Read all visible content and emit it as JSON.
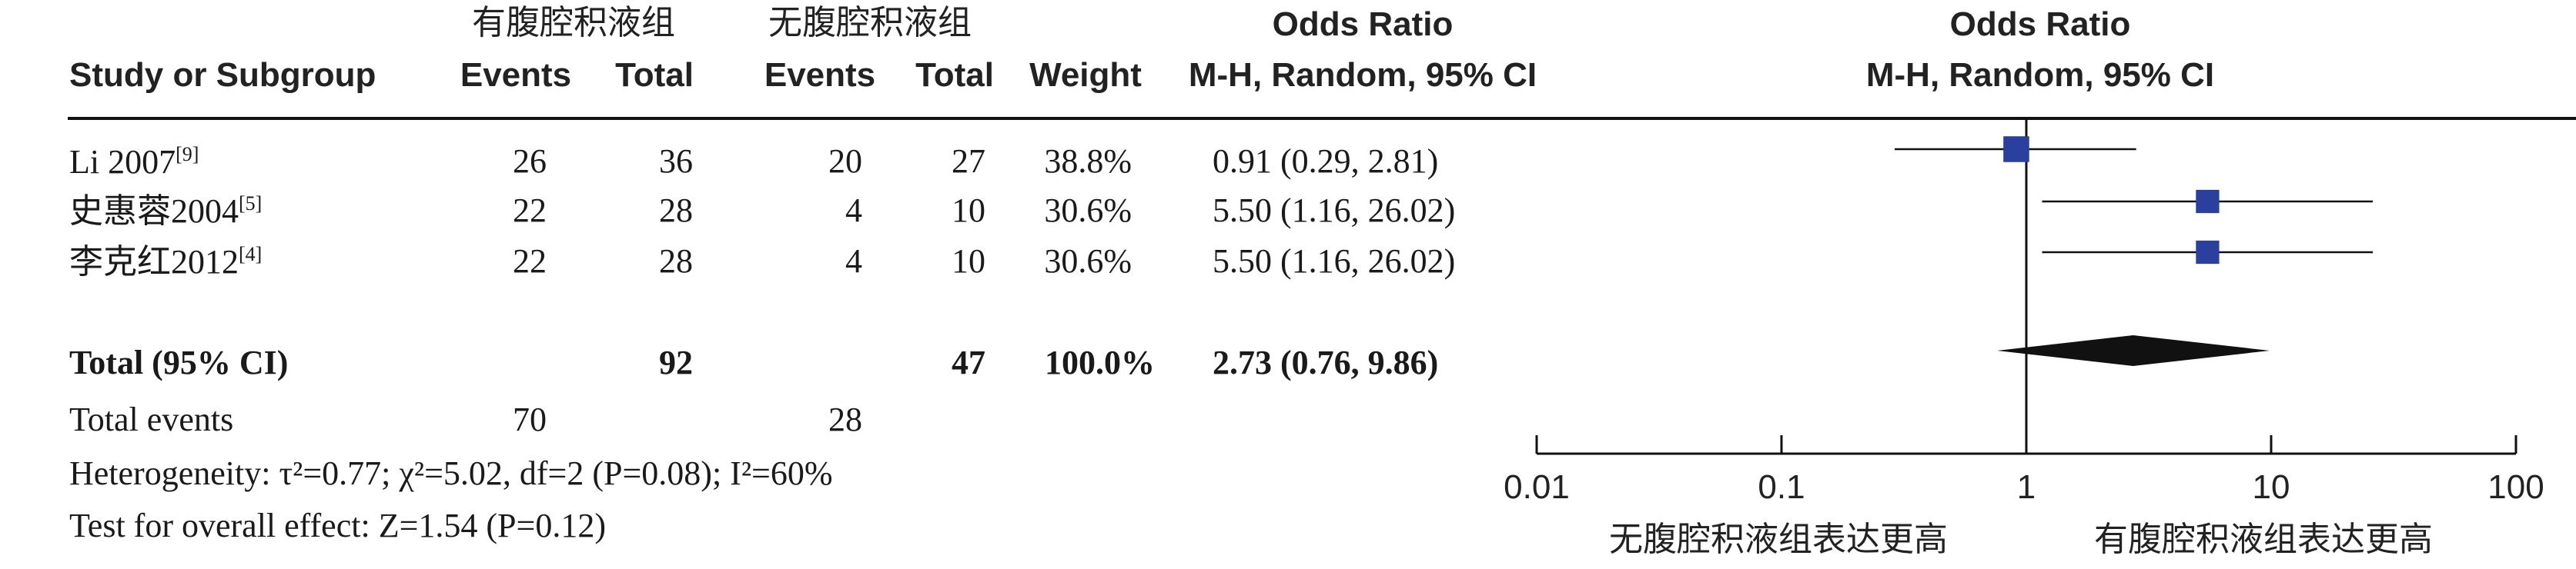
{
  "header": {
    "group1_name": "有腹腔积液组",
    "group2_name": "无腹腔积液组",
    "col_study": "Study or Subgroup",
    "col_events": "Events",
    "col_total": "Total",
    "col_weight": "Weight",
    "col_or_title": "Odds Ratio",
    "col_or_method": "M-H, Random, 95% CI",
    "plot_title": "Odds Ratio",
    "plot_method": "M-H, Random, 95% CI"
  },
  "studies": [
    {
      "name": "Li 2007",
      "ref": "[9]",
      "events1": "26",
      "total1": "36",
      "events2": "20",
      "total2": "27",
      "weight": "38.8%",
      "ci_text": "0.91 (0.29, 2.81)"
    },
    {
      "name": "史惠蓉2004",
      "ref": "[5]",
      "events1": "22",
      "total1": "28",
      "events2": "4",
      "total2": "10",
      "weight": "30.6%",
      "ci_text": "5.50 (1.16, 26.02)"
    },
    {
      "name": "李克红2012",
      "ref": "[4]",
      "events1": "22",
      "total1": "28",
      "events2": "4",
      "total2": "10",
      "weight": "30.6%",
      "ci_text": "5.50 (1.16, 26.02)"
    }
  ],
  "total": {
    "label": "Total (95% CI)",
    "total1": "92",
    "total2": "47",
    "weight": "100.0%",
    "ci_text": "2.73 (0.76, 9.86)"
  },
  "total_events": {
    "label": "Total events",
    "events1": "70",
    "events2": "28"
  },
  "heterogeneity": "Heterogeneity: τ²=0.77; χ²=5.02, df=2 (P=0.08); I²=60%",
  "overall_effect": "Test for overall effect: Z=1.54 (P=0.12)",
  "axis": {
    "left_label": "无腹腔积液组表达更高",
    "right_label": "有腹腔积液组表达更高"
  },
  "chart_data": {
    "type": "forest",
    "scale": "log",
    "xlim": [
      0.01,
      100
    ],
    "reference_line": 1,
    "ticks": [
      {
        "value": 0.01,
        "label": "0.01"
      },
      {
        "value": 0.1,
        "label": "0.1"
      },
      {
        "value": 1,
        "label": "1"
      },
      {
        "value": 10,
        "label": "10"
      },
      {
        "value": 100,
        "label": "100"
      }
    ],
    "studies": [
      {
        "name": "Li 2007",
        "or": 0.91,
        "lo": 0.29,
        "hi": 2.81,
        "weight": 38.8
      },
      {
        "name": "史惠蓉2004",
        "or": 5.5,
        "lo": 1.16,
        "hi": 26.02,
        "weight": 30.6
      },
      {
        "name": "李克红2012",
        "or": 5.5,
        "lo": 1.16,
        "hi": 26.02,
        "weight": 30.6
      }
    ],
    "pooled": {
      "or": 2.73,
      "lo": 0.76,
      "hi": 9.86
    },
    "colors": {
      "study_marker": "#2a3f9e",
      "pooled_diamond": "#111111",
      "lines": "#111111"
    }
  }
}
